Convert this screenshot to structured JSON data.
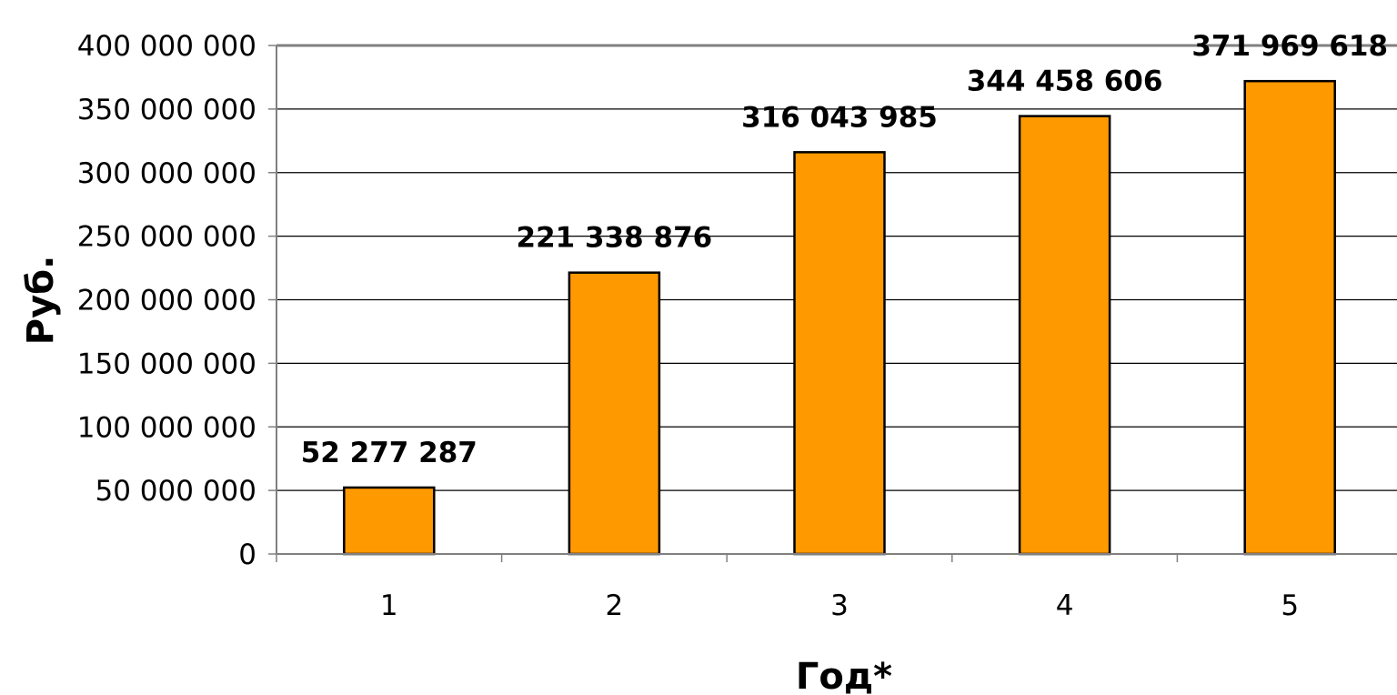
{
  "chart_data": {
    "type": "bar",
    "categories": [
      "1",
      "2",
      "3",
      "4",
      "5"
    ],
    "values": [
      52277287,
      221338876,
      316043985,
      344458606,
      371969618
    ],
    "data_labels": [
      "52 277 287",
      "221 338 876",
      "316 043 985",
      "344 458 606",
      "371 969 618"
    ],
    "ylim": [
      0,
      400000000
    ],
    "yticks": [
      0,
      50000000,
      100000000,
      150000000,
      200000000,
      250000000,
      300000000,
      350000000,
      400000000
    ],
    "ytick_labels": [
      "0",
      "50 000 000",
      "100 000 000",
      "150 000 000",
      "200 000 000",
      "250 000 000",
      "300 000 000",
      "350 000 000",
      "400 000 000"
    ],
    "xlabel": "Год*",
    "ylabel": "Руб.",
    "title": "",
    "grid": true,
    "legend": "none",
    "colors": {
      "bar_fill": "#FF9900",
      "bar_stroke": "#000000",
      "grid": "#000000",
      "axis": "#808080"
    }
  }
}
